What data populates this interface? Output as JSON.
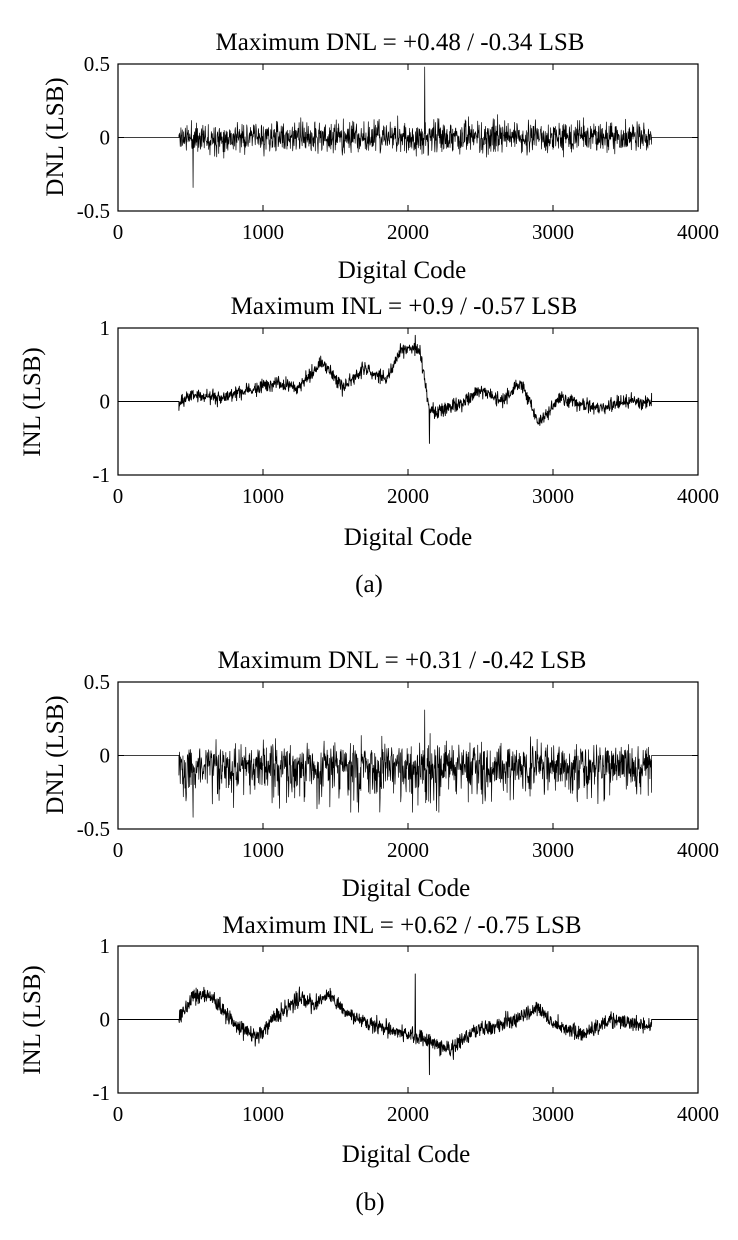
{
  "panels": [
    {
      "id": "a",
      "caption": "(a)"
    },
    {
      "id": "b",
      "caption": "(b)"
    }
  ],
  "chart_data": [
    {
      "type": "line",
      "panel": "a",
      "metric": "DNL",
      "seed": 11,
      "title": "Maximum DNL = +0.48 / -0.34 LSB",
      "xlabel": "Digital Code",
      "ylabel": "DNL (LSB)",
      "xlim": [
        0,
        4000
      ],
      "ylim": [
        -0.5,
        0.5
      ],
      "xticks": [
        0,
        1000,
        2000,
        3000,
        4000
      ],
      "yticks": [
        0.5,
        0,
        -0.5
      ],
      "yticklabels": [
        "0.5",
        "0",
        "-0.5"
      ],
      "active_range": [
        420,
        3680
      ],
      "max": 0.48,
      "min": -0.34,
      "envelope": [
        [
          420,
          0.12
        ],
        [
          1000,
          0.13
        ],
        [
          1500,
          0.14
        ],
        [
          2000,
          0.16
        ],
        [
          2500,
          0.14
        ],
        [
          3000,
          0.13
        ],
        [
          3680,
          0.13
        ]
      ],
      "bias": 0.0,
      "grid": false,
      "legend": "none",
      "color": "#000000"
    },
    {
      "type": "line",
      "panel": "a",
      "metric": "INL",
      "seed": 23,
      "title": "Maximum INL = +0.9 / -0.57 LSB",
      "xlabel": "Digital Code",
      "ylabel": "INL (LSB)",
      "xlim": [
        0,
        4000
      ],
      "ylim": [
        -1,
        1
      ],
      "xticks": [
        0,
        1000,
        2000,
        3000,
        4000
      ],
      "yticks": [
        1,
        0,
        -1
      ],
      "yticklabels": [
        "1",
        "0",
        "-1"
      ],
      "active_range": [
        420,
        3680
      ],
      "max": 0.9,
      "min": -0.57,
      "trend": [
        [
          420,
          -0.05
        ],
        [
          500,
          0.1
        ],
        [
          700,
          0.05
        ],
        [
          900,
          0.15
        ],
        [
          1100,
          0.25
        ],
        [
          1250,
          0.2
        ],
        [
          1400,
          0.55
        ],
        [
          1550,
          0.2
        ],
        [
          1700,
          0.45
        ],
        [
          1850,
          0.3
        ],
        [
          1950,
          0.7
        ],
        [
          2080,
          0.72
        ],
        [
          2150,
          -0.15
        ],
        [
          2350,
          -0.05
        ],
        [
          2500,
          0.15
        ],
        [
          2650,
          0.0
        ],
        [
          2780,
          0.25
        ],
        [
          2900,
          -0.3
        ],
        [
          3050,
          0.05
        ],
        [
          3300,
          -0.1
        ],
        [
          3500,
          0.0
        ],
        [
          3680,
          0.0
        ]
      ],
      "noise": 0.11,
      "grid": false,
      "legend": "none",
      "color": "#000000"
    },
    {
      "type": "line",
      "panel": "b",
      "metric": "DNL",
      "seed": 37,
      "title": "Maximum DNL = +0.31 / -0.42 LSB",
      "xlabel": "Digital Code",
      "ylabel": "DNL (LSB)",
      "xlim": [
        0,
        4000
      ],
      "ylim": [
        -0.5,
        0.5
      ],
      "xticks": [
        0,
        1000,
        2000,
        3000,
        4000
      ],
      "yticks": [
        0.5,
        0,
        -0.5
      ],
      "yticklabels": [
        "0.5",
        "0",
        "-0.5"
      ],
      "active_range": [
        420,
        3680
      ],
      "max": 0.31,
      "min": -0.42,
      "envelope": [
        [
          420,
          0.16
        ],
        [
          1000,
          0.17
        ],
        [
          1500,
          0.18
        ],
        [
          2000,
          0.2
        ],
        [
          2500,
          0.19
        ],
        [
          3000,
          0.17
        ],
        [
          3680,
          0.16
        ]
      ],
      "bias": -0.05,
      "grid": false,
      "legend": "none",
      "color": "#000000"
    },
    {
      "type": "line",
      "panel": "b",
      "metric": "INL",
      "seed": 53,
      "title": "Maximum INL = +0.62 / -0.75 LSB",
      "xlabel": "Digital Code",
      "ylabel": "INL (LSB)",
      "xlim": [
        0,
        4000
      ],
      "ylim": [
        -1,
        1
      ],
      "xticks": [
        0,
        1000,
        2000,
        3000,
        4000
      ],
      "yticks": [
        1,
        0,
        -1
      ],
      "yticklabels": [
        "1",
        "0",
        "-1"
      ],
      "active_range": [
        420,
        3680
      ],
      "max": 0.62,
      "min": -0.75,
      "trend": [
        [
          420,
          0.0
        ],
        [
          520,
          0.35
        ],
        [
          650,
          0.3
        ],
        [
          800,
          -0.05
        ],
        [
          950,
          -0.25
        ],
        [
          1100,
          0.05
        ],
        [
          1250,
          0.3
        ],
        [
          1350,
          0.2
        ],
        [
          1450,
          0.35
        ],
        [
          1600,
          0.05
        ],
        [
          1800,
          -0.1
        ],
        [
          2000,
          -0.2
        ],
        [
          2150,
          -0.3
        ],
        [
          2300,
          -0.45
        ],
        [
          2450,
          -0.15
        ],
        [
          2600,
          -0.1
        ],
        [
          2750,
          0.0
        ],
        [
          2900,
          0.15
        ],
        [
          3000,
          -0.05
        ],
        [
          3200,
          -0.2
        ],
        [
          3400,
          0.0
        ],
        [
          3550,
          -0.05
        ],
        [
          3680,
          -0.1
        ]
      ],
      "noise": 0.13,
      "grid": false,
      "legend": "none",
      "color": "#000000"
    }
  ]
}
